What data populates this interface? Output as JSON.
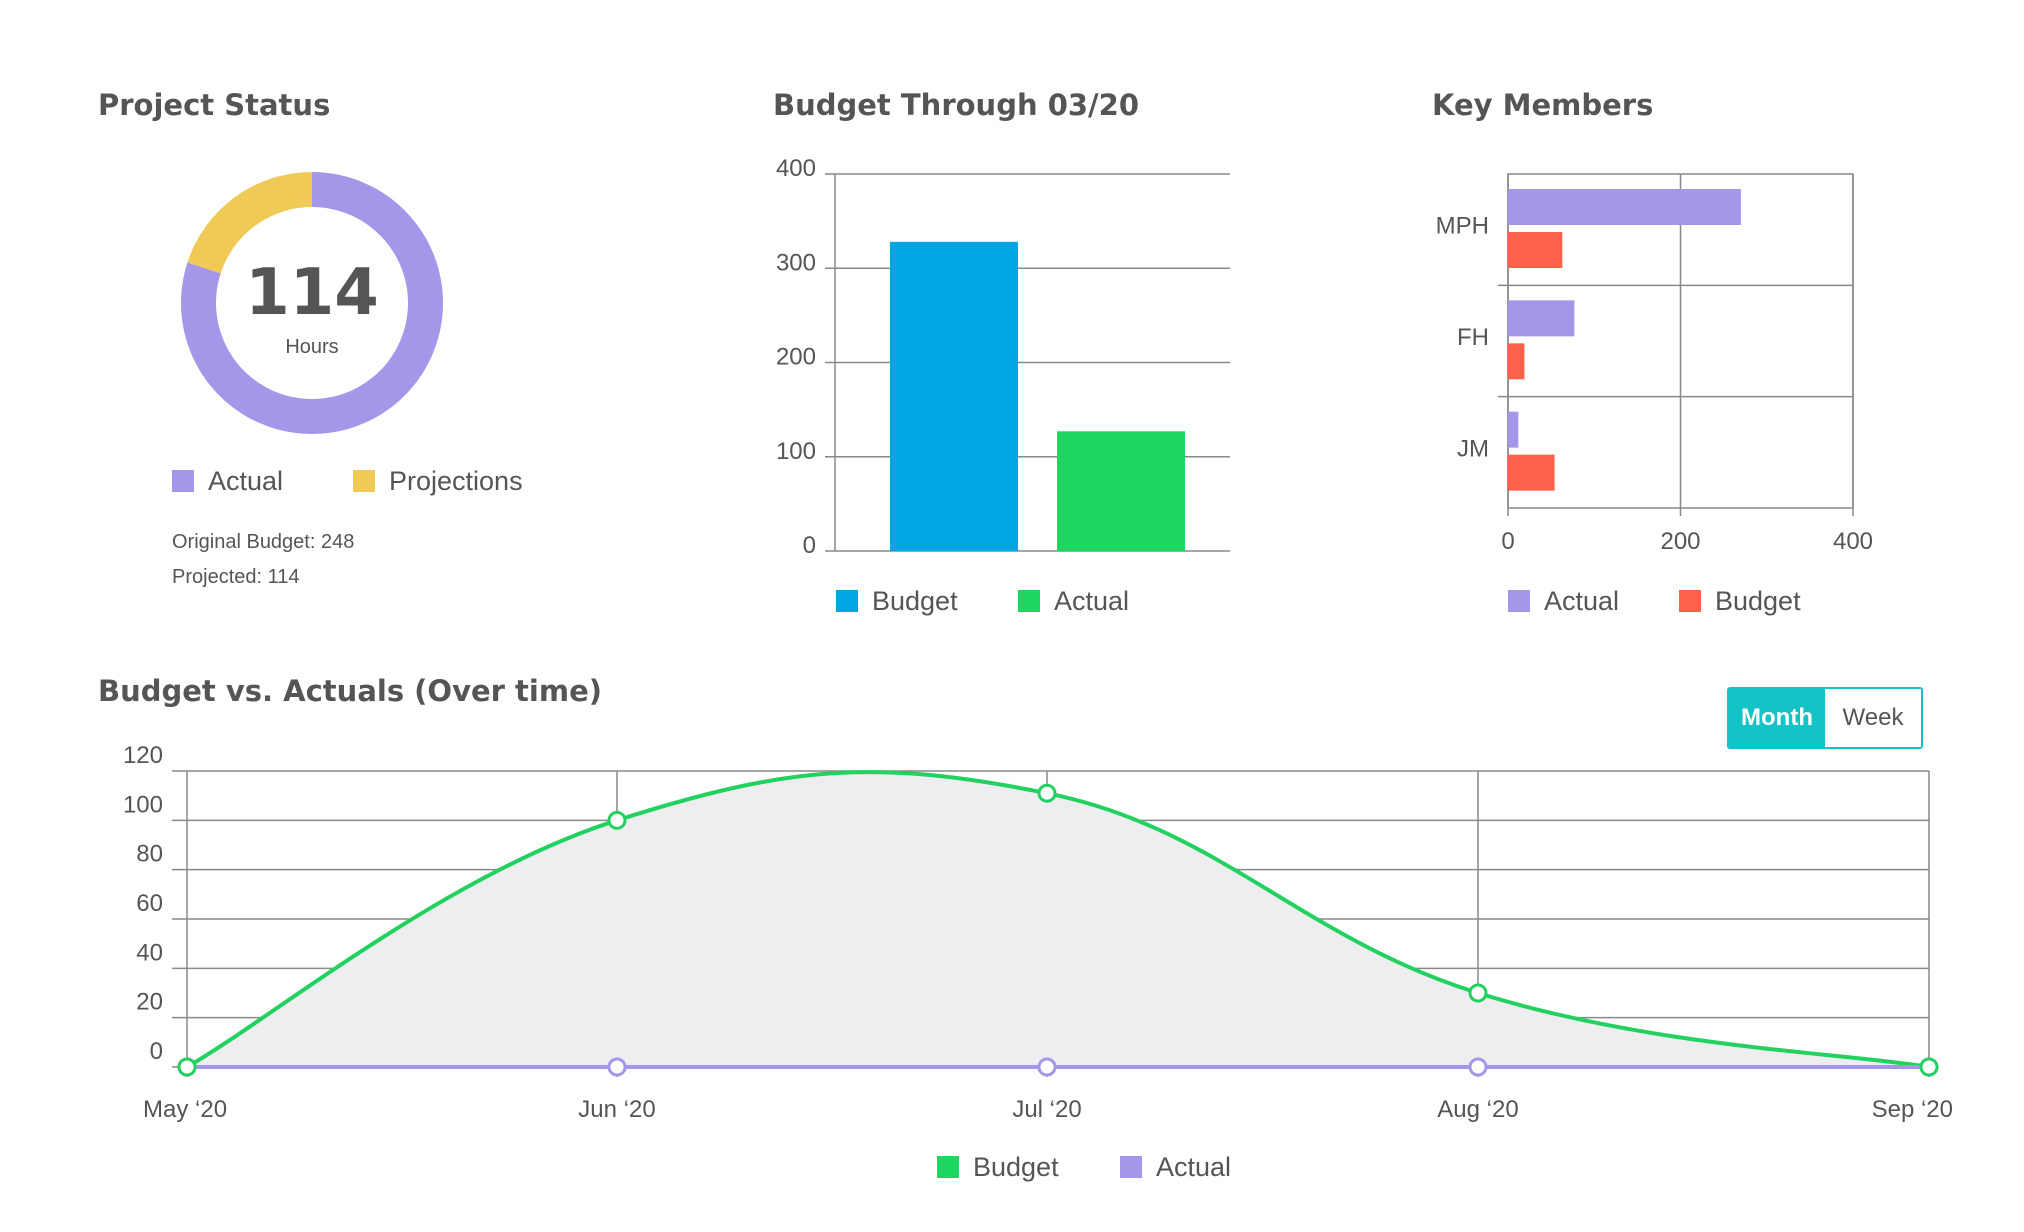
{
  "titles": {
    "status": "Project Status",
    "budget": "Budget Through 03/20",
    "members": "Key Members",
    "timeline": "Budget vs. Actuals (Over time)"
  },
  "status": {
    "value": "114",
    "unit": "Hours",
    "original_budget": "Original Budget: 248",
    "projected": "Projected: 114"
  },
  "toggle": {
    "month": "Month",
    "week": "Week",
    "selected": "Month"
  },
  "colors": {
    "actual_purple": "#a497ea",
    "projection_yellow": "#f0c956",
    "budget_blue": "#00a6e2",
    "actual_green": "#1ed760",
    "budget_red": "#ff6249",
    "line_green": "#22d160",
    "accent_teal": "#13c3c7"
  },
  "chart_data": [
    {
      "id": "status-donut",
      "type": "pie",
      "donut": true,
      "series": [
        {
          "name": "Actual",
          "value": 208
        },
        {
          "name": "Projections",
          "value": 52
        }
      ],
      "center_label": "114",
      "center_sublabel": "Hours"
    },
    {
      "id": "budget-bars",
      "type": "bar",
      "categories": [
        "Budget",
        "Actual"
      ],
      "values": [
        328,
        127
      ],
      "ylim": [
        0,
        400
      ],
      "yticks": [
        0,
        100,
        200,
        300,
        400
      ],
      "legend": [
        "Budget",
        "Actual"
      ],
      "legend_position": "bottom",
      "grid": true
    },
    {
      "id": "members-bars",
      "type": "bar",
      "orientation": "horizontal",
      "categories": [
        "MPH",
        "FH",
        "JM"
      ],
      "series": [
        {
          "name": "Actual",
          "values": [
            270,
            77,
            12
          ]
        },
        {
          "name": "Budget",
          "values": [
            63,
            19,
            54
          ]
        }
      ],
      "xlim": [
        0,
        400
      ],
      "xticks": [
        0,
        200,
        400
      ],
      "legend_position": "bottom",
      "grid": true
    },
    {
      "id": "timeline",
      "type": "area",
      "x": [
        "May ‘20",
        "Jun ‘20",
        "Jul ‘20",
        "Aug ‘20",
        "Sep ‘20"
      ],
      "series": [
        {
          "name": "Budget",
          "values": [
            0,
            100,
            111,
            30,
            0
          ]
        },
        {
          "name": "Actual",
          "values": [
            0,
            0,
            0,
            0,
            0
          ]
        }
      ],
      "ylim": [
        0,
        120
      ],
      "yticks": [
        0,
        20,
        40,
        60,
        80,
        100,
        120
      ],
      "legend_position": "bottom",
      "grid": true
    }
  ]
}
